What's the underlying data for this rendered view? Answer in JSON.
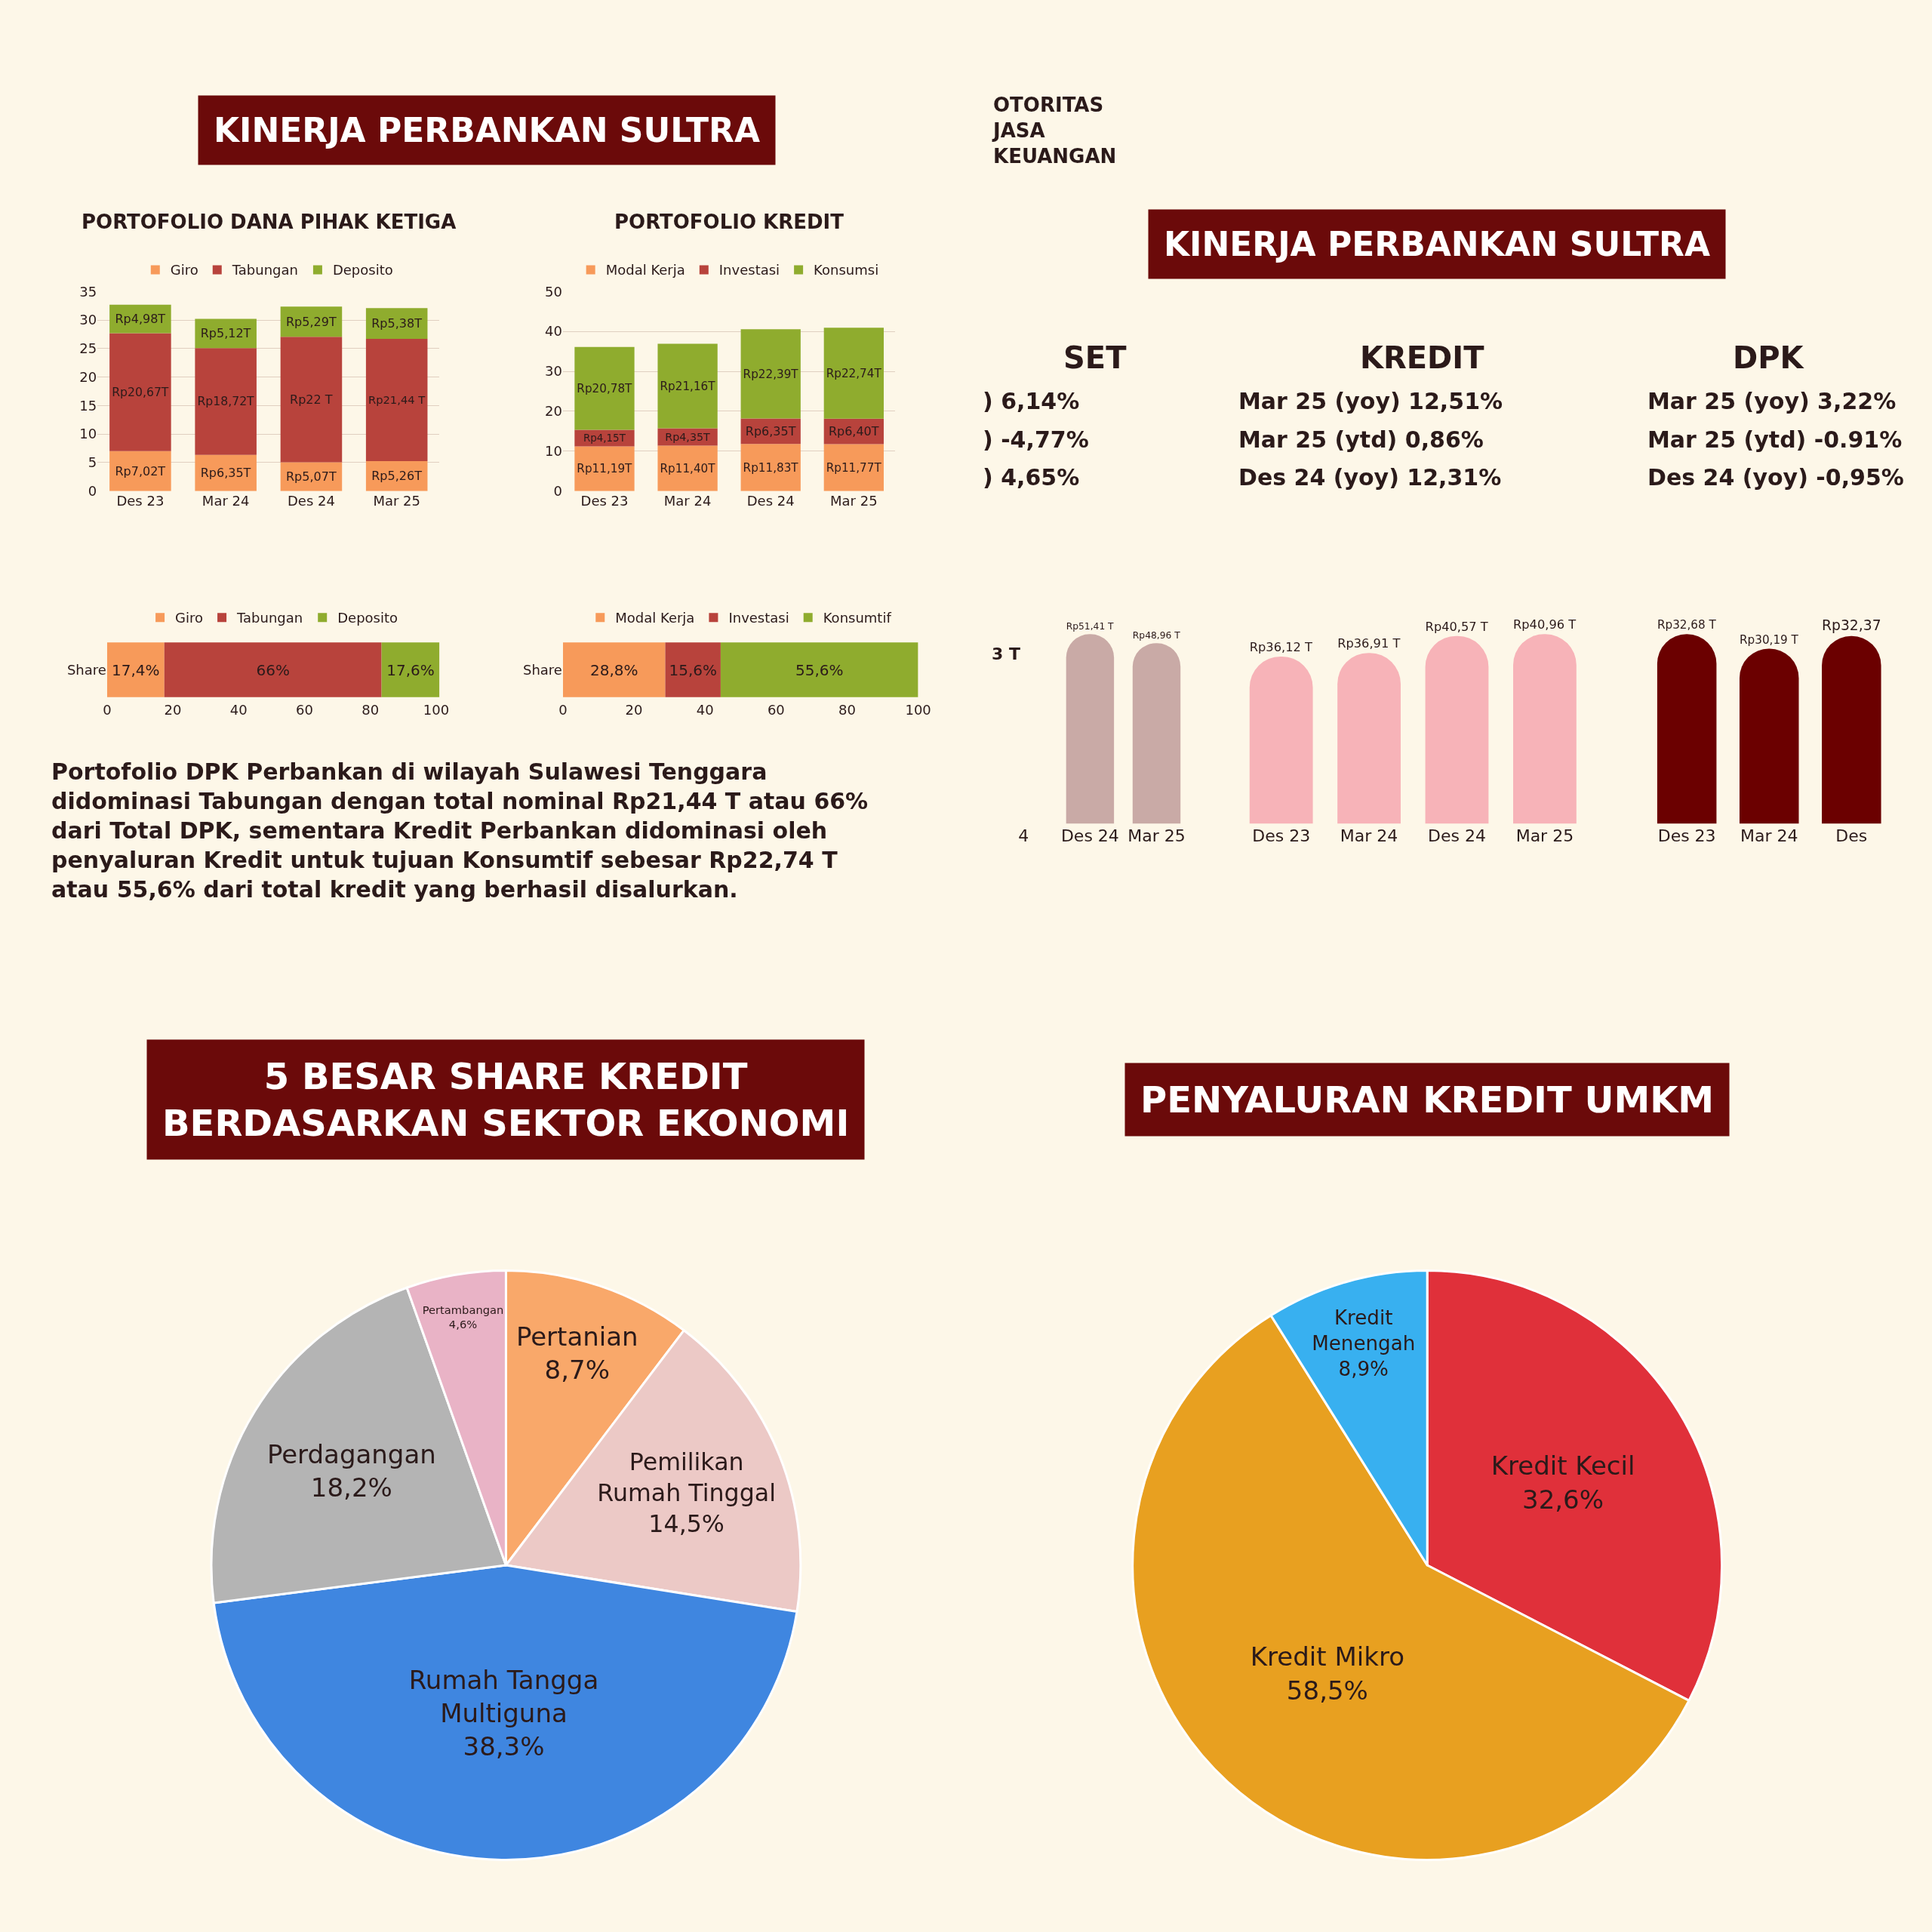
{
  "chart_data": [
    {
      "type": "other",
      "title": "KINERJA PERBANKAN SULTRA"
    },
    {
      "type": "bar",
      "title": "PORTOFOLIO DANA PIHAK KETIGA",
      "categories": [
        "Des 23",
        "Mar 24",
        "Des 24",
        "Mar 25"
      ],
      "stacked": true,
      "legend": "top",
      "grid": "y",
      "ylim": [
        0,
        35
      ],
      "yticks": [
        0,
        5,
        10,
        15,
        20,
        25,
        30,
        35
      ],
      "series": [
        {
          "name": "Giro",
          "color": "#f79a5a",
          "values": [
            7.02,
            6.35,
            5.07,
            5.26
          ],
          "value_labels": [
            "Rp7,02T",
            "Rp6,35T",
            "Rp5,07T",
            "Rp5,26T"
          ]
        },
        {
          "name": "Tabungan",
          "color": "#b8433c",
          "values": [
            20.67,
            18.72,
            22,
            21.44
          ],
          "value_labels": [
            "Rp20,67T",
            "Rp18,72T",
            "Rp22 T",
            "Rp21,44 T"
          ]
        },
        {
          "name": "Deposito",
          "color": "#8fac2e",
          "values": [
            4.98,
            5.12,
            5.29,
            5.38
          ],
          "value_labels": [
            "Rp4,98T",
            "Rp5,12T",
            "Rp5,29T",
            "Rp5,38T"
          ]
        }
      ]
    },
    {
      "type": "bar",
      "title": "PORTOFOLIO KREDIT",
      "categories": [
        "Des 23",
        "Mar 24",
        "Des 24",
        "Mar 25"
      ],
      "stacked": true,
      "legend": "top",
      "grid": "y",
      "ylim": [
        0,
        50
      ],
      "yticks": [
        0,
        10,
        20,
        30,
        40,
        50
      ],
      "series": [
        {
          "name": "Modal Kerja",
          "color": "#f79a5a",
          "values": [
            11.19,
            11.4,
            11.83,
            11.77
          ],
          "value_labels": [
            "Rp11,19T",
            "Rp11,40T",
            "Rp11,83T",
            "Rp11,77T"
          ]
        },
        {
          "name": "Investasi",
          "color": "#b8433c",
          "values": [
            4.15,
            4.35,
            6.35,
            6.4
          ],
          "value_labels": [
            "Rp4,15T",
            "Rp4,35T",
            "Rp6,35T",
            "Rp6,40T"
          ]
        },
        {
          "name": "Konsumsi",
          "color": "#8fac2e",
          "values": [
            20.78,
            21.16,
            22.39,
            22.74
          ],
          "value_labels": [
            "Rp20,78T",
            "Rp21,16T",
            "Rp22,39T",
            "Rp22,74T"
          ]
        }
      ]
    },
    {
      "type": "bar",
      "orientation": "horizontal",
      "stacked": true,
      "categories": [
        "Share"
      ],
      "legend": "top",
      "xlim": [
        0,
        101
      ],
      "xticks": [
        0,
        20,
        40,
        60,
        80,
        100
      ],
      "series": [
        {
          "name": "Giro",
          "color": "#f79a5a",
          "values": [
            17.4
          ],
          "value_labels": [
            "17,4%"
          ]
        },
        {
          "name": "Tabungan",
          "color": "#b8433c",
          "values": [
            66
          ],
          "value_labels": [
            "66%"
          ]
        },
        {
          "name": "Deposito",
          "color": "#8fac2e",
          "values": [
            17.6
          ],
          "value_labels": [
            "17,6%"
          ]
        }
      ]
    },
    {
      "type": "bar",
      "orientation": "horizontal",
      "stacked": true,
      "categories": [
        "Share"
      ],
      "legend": "top",
      "xlim": [
        0,
        100
      ],
      "xticks": [
        0,
        20,
        40,
        60,
        80,
        100
      ],
      "series": [
        {
          "name": "Modal Kerja",
          "color": "#f79a5a",
          "values": [
            28.8
          ],
          "value_labels": [
            "28,8%"
          ]
        },
        {
          "name": "Investasi",
          "color": "#b8433c",
          "values": [
            15.6
          ],
          "value_labels": [
            "15,6%"
          ]
        },
        {
          "name": "Konsumtif",
          "color": "#8fac2e",
          "values": [
            55.6
          ],
          "value_labels": [
            "55,6%"
          ]
        }
      ]
    },
    {
      "type": "other",
      "annotations": [
        "Portofolio DPK Perbankan di wilayah Sulawesi Tenggara didominasi Tabungan dengan total nominal Rp21,44 T atau 66% dari Total DPK, sementara Kredit Perbankan didominasi oleh penyaluran Kredit untuk tujuan Konsumtif sebesar Rp22,74 T atau 55,6% dari total kredit yang berhasil disalurkan."
      ]
    },
    {
      "type": "other",
      "annotations": [
        "OTORITAS\nJASA\nKEUANGAN"
      ]
    },
    {
      "type": "other",
      "title": "KINERJA PERBANKAN SULTRA"
    },
    {
      "type": "other",
      "title": "SET",
      "annotations": [
        ") 6,14%",
        ") -4,77%",
        ") 4,65%"
      ]
    },
    {
      "type": "other",
      "title": "KREDIT",
      "annotations": [
        "Mar 25 (yoy) 12,51%",
        "Mar 25 (ytd) 0,86%",
        "Des 24 (yoy) 12,31%"
      ]
    },
    {
      "type": "other",
      "title": "DPK",
      "annotations": [
        "Mar 25 (yoy) 3,22%",
        "Mar 25 (ytd) -0.91%",
        "Des 24 (yoy) -0,95%"
      ]
    },
    {
      "type": "bar",
      "tick_labels": "x",
      "categories": [
        "4",
        "Des 24",
        "Mar 25"
      ],
      "annotations": [
        "3 T"
      ],
      "series": [
        {
          "color": "#c9aaa6",
          "values": [
            null,
            51.41,
            48.96
          ],
          "value_labels": [
            null,
            "Rp51,41 T",
            "Rp48,96 T"
          ]
        }
      ]
    },
    {
      "type": "bar",
      "tick_labels": "x",
      "categories": [
        "Des 23",
        "Mar 24",
        "Des 24",
        "Mar 25"
      ],
      "series": [
        {
          "color": "#f7b3b8",
          "values": [
            36.12,
            36.91,
            40.57,
            40.96
          ],
          "value_labels": [
            "Rp36,12 T",
            "Rp36,91 T",
            "Rp40,57 T",
            "Rp40,96 T"
          ]
        }
      ]
    },
    {
      "type": "bar",
      "tick_labels": "x",
      "categories": [
        "Des 23",
        "Mar 24",
        "Des"
      ],
      "series": [
        {
          "color": "#6b0000",
          "values": [
            32.68,
            30.19,
            32.37
          ],
          "value_labels": [
            "Rp32,68 T",
            "Rp30,19 T",
            "Rp32,37"
          ]
        }
      ]
    },
    {
      "type": "pie",
      "title": "5 BESAR SHARE KREDIT\nBERDASARKAN SEKTOR EKONOMI",
      "categories": [
        "Pertanian",
        "Pemilikan Rumah Tinggal",
        "Rumah Tangga Multiguna",
        "Perdagangan",
        "Pertambangan"
      ],
      "values": [
        8.7,
        14.5,
        38.3,
        18.2,
        4.6
      ],
      "value_labels": [
        "8,7%",
        "14,5%",
        "38,3%",
        "18,2%",
        "4,6%"
      ],
      "colors": [
        "#f9a86a",
        "#ecc9c6",
        "#3f86e0",
        "#b4b4b4",
        "#e9b3c6"
      ]
    },
    {
      "type": "pie",
      "title": "PENYALURAN KREDIT UMKM",
      "categories": [
        "Kredit Kecil",
        "Kredit Mikro",
        "Kredit Menengah"
      ],
      "values": [
        32.6,
        58.5,
        8.9
      ],
      "value_labels": [
        "32,6%",
        "58,5%",
        "8,9%"
      ],
      "colors": [
        "#e0303a",
        "#e8a020",
        "#38b0f0"
      ]
    }
  ]
}
